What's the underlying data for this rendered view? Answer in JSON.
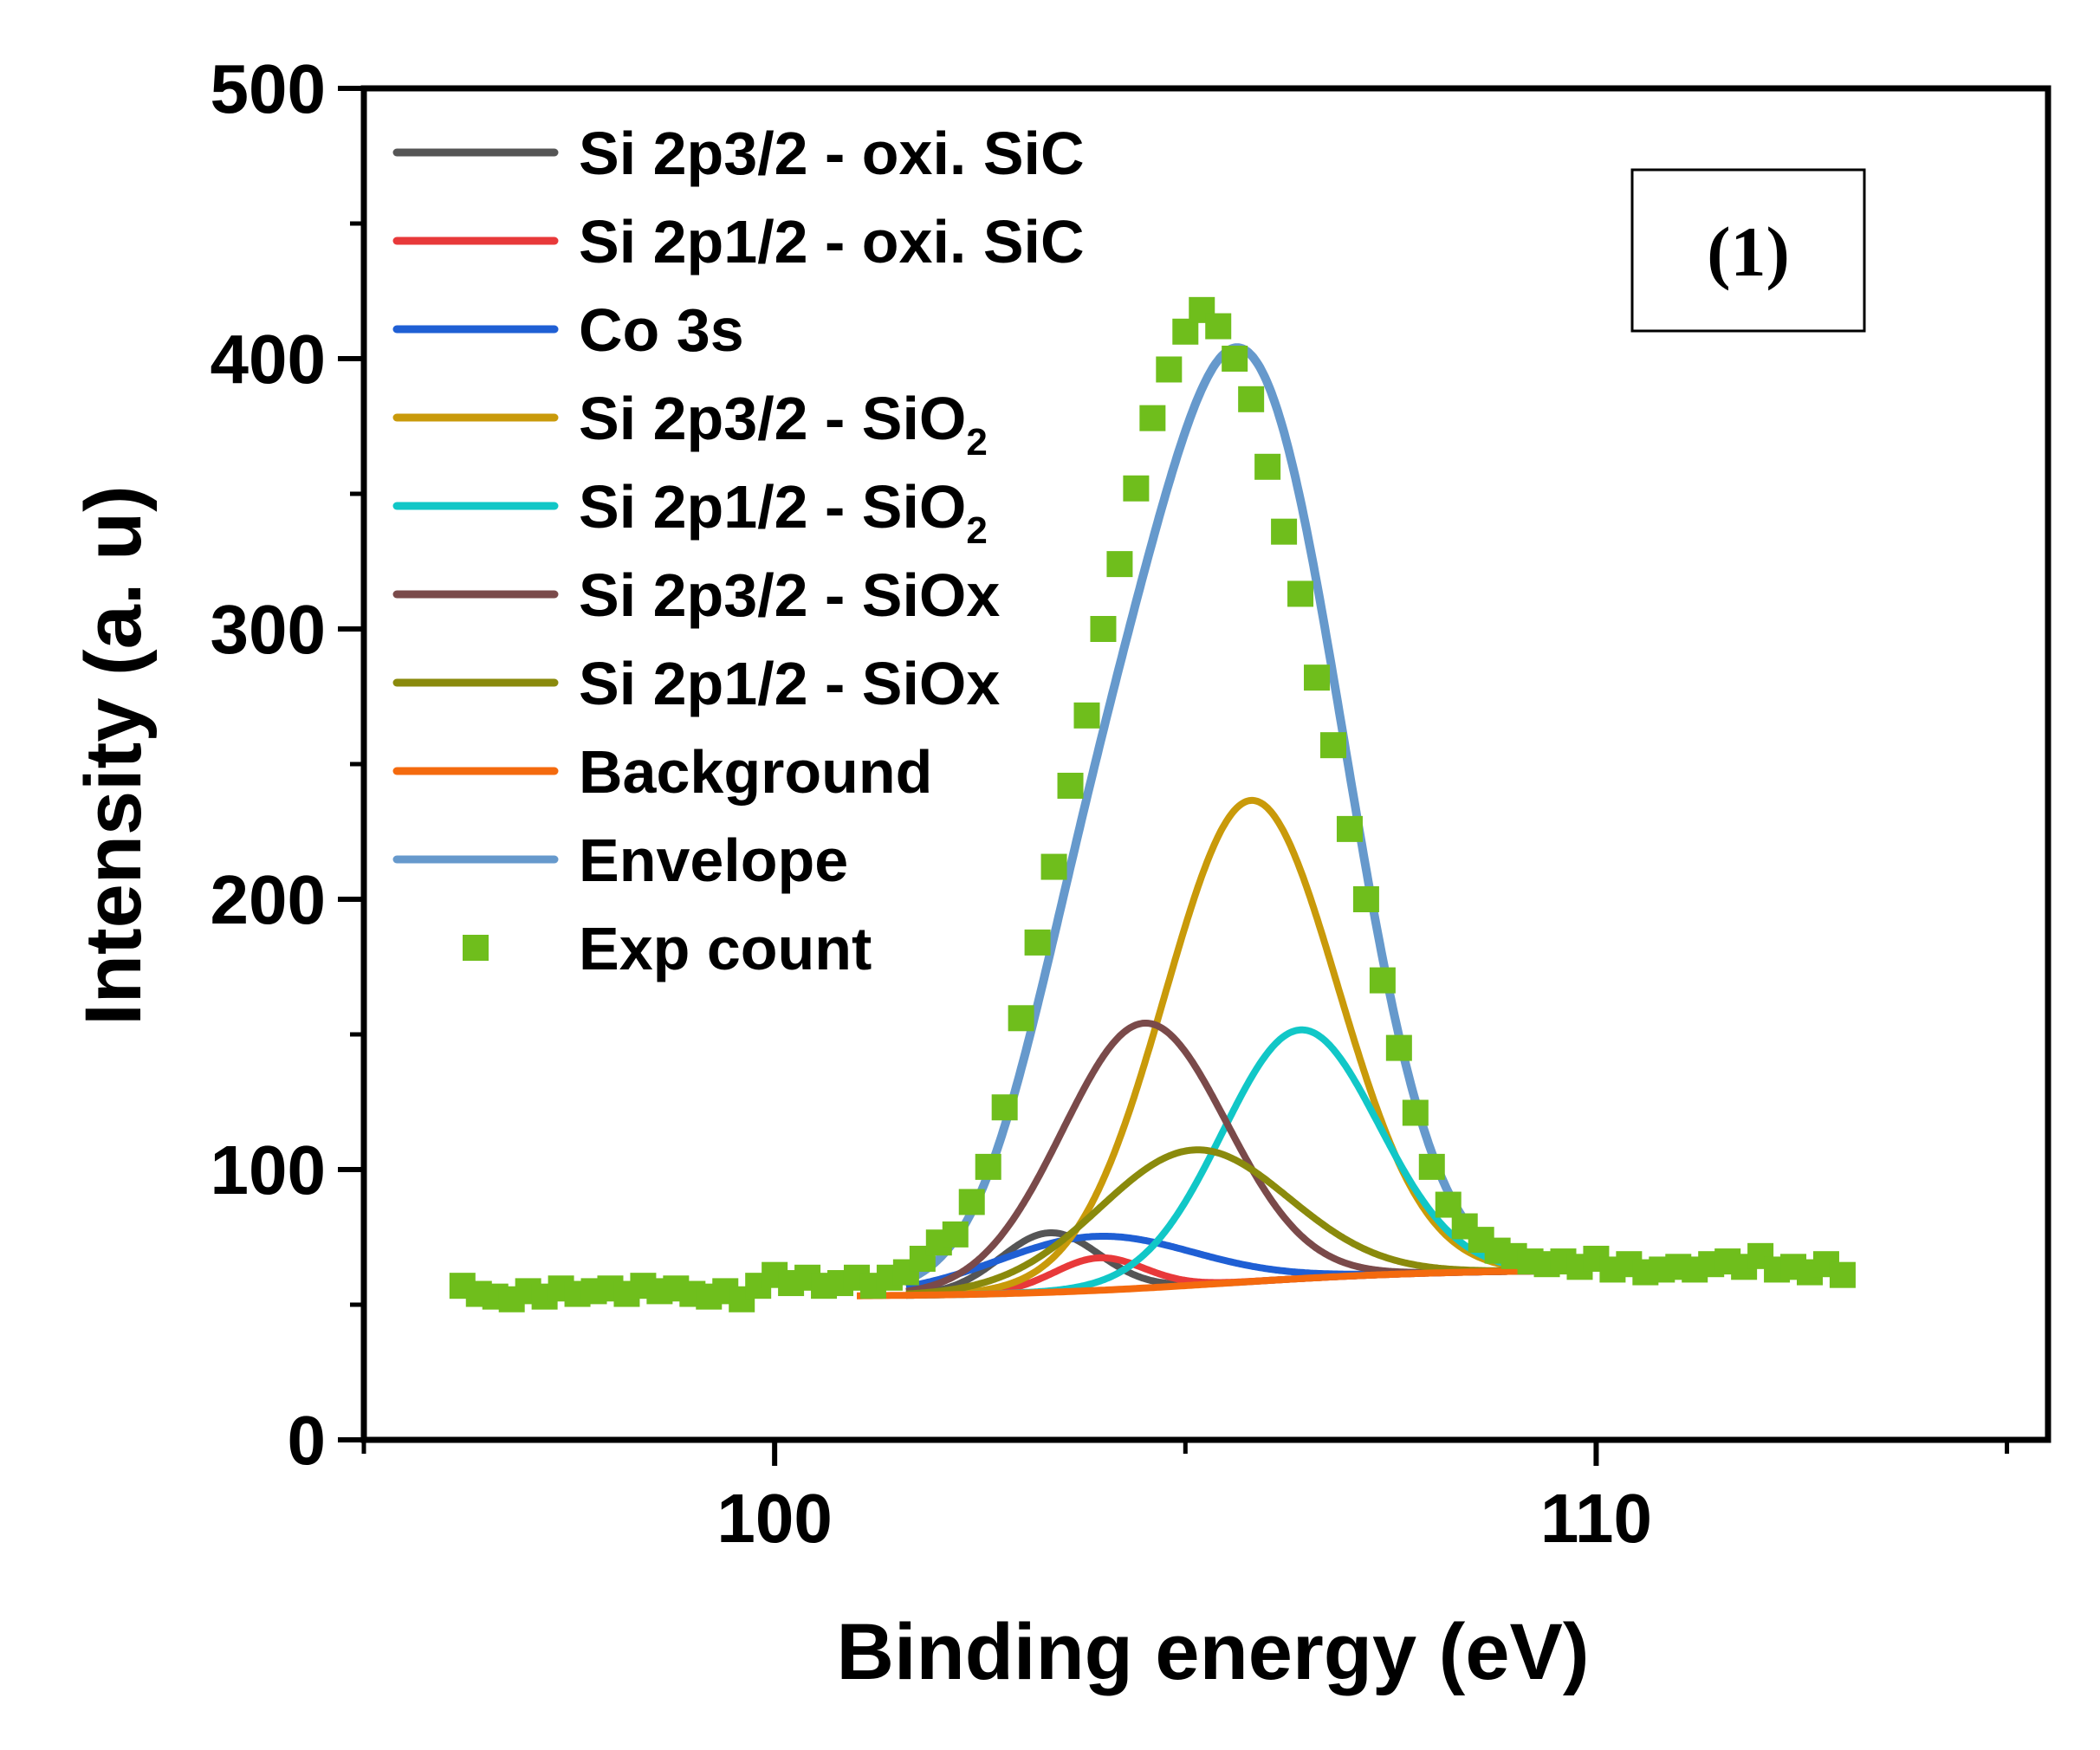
{
  "chart_data": {
    "type": "line",
    "title": "",
    "xlabel": "Binding energy (eV)",
    "ylabel": "Intensity (a. u)",
    "xlim": [
      95,
      115.5
    ],
    "ylim": [
      0,
      500
    ],
    "xticks": [
      100,
      110
    ],
    "yticks": [
      0,
      100,
      200,
      300,
      400,
      500
    ],
    "panel_label": "(1)",
    "grid": false,
    "legend_position": "top-left",
    "fit_components": [
      {
        "name": "Si 2p3/2 - oxi. SiC",
        "color": "#555555",
        "center": 103.35,
        "amplitude": 22,
        "sigma": 0.6
      },
      {
        "name": "Si 2p1/2 - oxi. SiC",
        "color": "#e8393a",
        "center": 103.95,
        "amplitude": 12,
        "sigma": 0.55
      },
      {
        "name": "Co 3s",
        "color": "#1f5fd4",
        "center": 103.9,
        "amplitude": 20,
        "sigma": 1.2
      },
      {
        "name": "Si 2p3/2 - SiO2",
        "label_main": "Si 2p3/2 - SiO",
        "label_sub": "2",
        "color": "#c99a0a",
        "center": 105.8,
        "amplitude": 178,
        "sigma": 1.05
      },
      {
        "name": "Si 2p1/2 - SiO2",
        "label_main": "Si 2p1/2 - SiO",
        "label_sub": "2",
        "color": "#11c7c7",
        "center": 106.4,
        "amplitude": 92,
        "sigma": 0.95
      },
      {
        "name": "Si 2p3/2 - SiOx",
        "color": "#7a4a4a",
        "center": 104.5,
        "amplitude": 98,
        "sigma": 1.0
      },
      {
        "name": "Si 2p1/2 - SiOx",
        "color": "#8a8a0c",
        "center": 105.1,
        "amplitude": 50,
        "sigma": 1.15
      }
    ],
    "fit_range": [
      101.6,
      109.4
    ],
    "background": {
      "name": "Background",
      "color": "#f46a0e",
      "low_value": 53,
      "high_value": 63,
      "step_center": 105.5,
      "step_width": 1.3
    },
    "envelope": {
      "name": "Envelope",
      "color": "#6699cc",
      "x_range": [
        101.6,
        109.5
      ],
      "baseline_low": 53,
      "baseline_high": 63,
      "peak_center": 105.5,
      "peak_height": 407
    },
    "exp_count": {
      "name": "Exp count",
      "color": "#6fbe1c",
      "marker": "square",
      "x": [
        96.2,
        96.4,
        96.6,
        96.8,
        97.0,
        97.2,
        97.4,
        97.6,
        97.8,
        98.0,
        98.2,
        98.4,
        98.6,
        98.8,
        99.0,
        99.2,
        99.4,
        99.6,
        99.8,
        100.0,
        100.2,
        100.4,
        100.6,
        100.8,
        101.0,
        101.2,
        101.4,
        101.6,
        101.8,
        102.0,
        102.2,
        102.4,
        102.6,
        102.8,
        103.0,
        103.2,
        103.4,
        103.6,
        103.8,
        104.0,
        104.2,
        104.4,
        104.6,
        104.8,
        105.0,
        105.2,
        105.4,
        105.6,
        105.8,
        106.0,
        106.2,
        106.4,
        106.6,
        106.8,
        107.0,
        107.2,
        107.4,
        107.6,
        107.8,
        108.0,
        108.2,
        108.4,
        108.6,
        108.8,
        109.0,
        109.2,
        109.4,
        109.6,
        109.8,
        110.0,
        110.2,
        110.4,
        110.6,
        110.8,
        111.0,
        111.2,
        111.4,
        111.6,
        111.8,
        112.0,
        112.2,
        112.4,
        112.6,
        112.8,
        113.0
      ],
      "y": [
        57,
        54,
        53,
        52,
        55,
        53,
        56,
        54,
        55,
        56,
        54,
        57,
        55,
        56,
        54,
        53,
        55,
        52,
        57,
        61,
        58,
        60,
        57,
        58,
        60,
        57,
        60,
        62,
        67,
        73,
        76,
        88,
        101,
        123,
        156,
        184,
        212,
        242,
        268,
        300,
        324,
        352,
        378,
        396,
        410,
        418,
        412,
        400,
        385,
        360,
        336,
        313,
        282,
        257,
        226,
        200,
        170,
        145,
        121,
        101,
        87,
        79,
        74,
        70,
        68,
        66,
        65,
        66,
        64,
        67,
        63,
        65,
        62,
        63,
        64,
        63,
        65,
        66,
        64,
        68,
        63,
        64,
        62,
        65,
        61
      ]
    }
  }
}
